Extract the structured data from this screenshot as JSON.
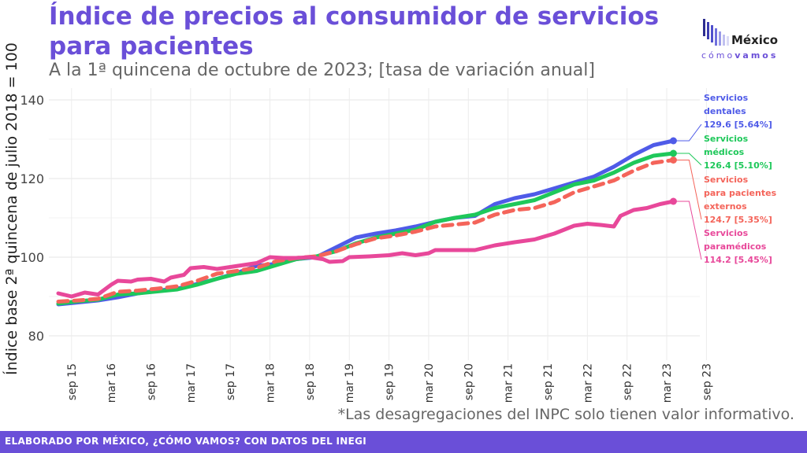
{
  "header": {
    "title": "Índice de precios al consumidor de servicios para pacientes",
    "subtitle": "A la 1ª quincena de octubre de 2023; [tasa de variación anual]"
  },
  "logo": {
    "name": "México",
    "tagline_a": "cómo",
    "tagline_b": "vamos"
  },
  "note": "*Las desagregaciones del INPC solo tienen valor informativo.",
  "footer": "ELABORADO POR MÉXICO, ¿CÓMO VAMOS? CON DATOS DEL INEGI",
  "chart_data": {
    "type": "line",
    "ylabel": "Índice base 2ª quincena de julio 2018 = 100",
    "ylim": [
      75,
      143
    ],
    "yticks": [
      80,
      100,
      120,
      140
    ],
    "xticks": [
      "sep 15",
      "mar 16",
      "sep 16",
      "mar 17",
      "sep 17",
      "mar 18",
      "sep 18",
      "mar 19",
      "sep 19",
      "mar 20",
      "sep 20",
      "mar 21",
      "sep 21",
      "mar 22",
      "sep 22",
      "mar 23",
      "sep 23"
    ],
    "x_start": "2015-07",
    "x_end": "2023-10",
    "grid": true,
    "series": [
      {
        "name": "Servicios dentales",
        "label_lines": [
          "Servicios",
          "dentales",
          "129.6 [5.64%]"
        ],
        "color": "#4f5be8",
        "dash": false,
        "points": [
          [
            0,
            88.0
          ],
          [
            3,
            88.5
          ],
          [
            6,
            89.0
          ],
          [
            9,
            89.8
          ],
          [
            12,
            90.8
          ],
          [
            15,
            91.5
          ],
          [
            18,
            92.0
          ],
          [
            21,
            93.2
          ],
          [
            24,
            94.5
          ],
          [
            27,
            96.0
          ],
          [
            30,
            97.8
          ],
          [
            33,
            98.3
          ],
          [
            36,
            99.5
          ],
          [
            39,
            100.0
          ],
          [
            42,
            102.5
          ],
          [
            45,
            105.0
          ],
          [
            48,
            106.0
          ],
          [
            51,
            106.8
          ],
          [
            54,
            107.8
          ],
          [
            57,
            109.0
          ],
          [
            60,
            110.0
          ],
          [
            63,
            110.5
          ],
          [
            66,
            113.5
          ],
          [
            69,
            115.0
          ],
          [
            72,
            116.0
          ],
          [
            75,
            117.5
          ],
          [
            78,
            119.0
          ],
          [
            81,
            120.5
          ],
          [
            84,
            123.0
          ],
          [
            87,
            126.0
          ],
          [
            90,
            128.5
          ],
          [
            93,
            129.6
          ]
        ],
        "value": 129.6
      },
      {
        "name": "Servicios médicos",
        "label_lines": [
          "Servicios",
          "médicos",
          "126.4 [5.10%]"
        ],
        "color": "#1ec85a",
        "dash": false,
        "points": [
          [
            0,
            88.2
          ],
          [
            3,
            88.8
          ],
          [
            6,
            89.2
          ],
          [
            9,
            90.5
          ],
          [
            12,
            90.8
          ],
          [
            15,
            91.3
          ],
          [
            18,
            91.8
          ],
          [
            21,
            93.0
          ],
          [
            24,
            94.5
          ],
          [
            27,
            95.8
          ],
          [
            30,
            96.5
          ],
          [
            33,
            98.0
          ],
          [
            36,
            99.5
          ],
          [
            39,
            100.2
          ],
          [
            42,
            101.5
          ],
          [
            45,
            103.5
          ],
          [
            48,
            105.0
          ],
          [
            51,
            106.0
          ],
          [
            54,
            107.0
          ],
          [
            57,
            109.0
          ],
          [
            60,
            110.0
          ],
          [
            63,
            110.8
          ],
          [
            66,
            112.5
          ],
          [
            69,
            113.5
          ],
          [
            72,
            114.5
          ],
          [
            75,
            116.5
          ],
          [
            78,
            118.5
          ],
          [
            81,
            119.5
          ],
          [
            84,
            121.5
          ],
          [
            87,
            124.0
          ],
          [
            90,
            125.8
          ],
          [
            93,
            126.4
          ]
        ],
        "value": 126.4
      },
      {
        "name": "Servicios para pacientes externos",
        "label_lines": [
          "Servicios",
          "para pacientes",
          "externos",
          "124.7 [5.35%]"
        ],
        "color": "#f4645a",
        "dash": true,
        "points": [
          [
            0,
            88.7
          ],
          [
            3,
            89.0
          ],
          [
            6,
            89.4
          ],
          [
            9,
            91.2
          ],
          [
            12,
            91.5
          ],
          [
            15,
            92.0
          ],
          [
            18,
            92.6
          ],
          [
            21,
            94.0
          ],
          [
            24,
            95.8
          ],
          [
            27,
            96.5
          ],
          [
            30,
            97.3
          ],
          [
            33,
            99.0
          ],
          [
            36,
            99.8
          ],
          [
            39,
            100.2
          ],
          [
            42,
            101.5
          ],
          [
            45,
            103.3
          ],
          [
            48,
            104.8
          ],
          [
            51,
            105.5
          ],
          [
            54,
            106.5
          ],
          [
            57,
            107.8
          ],
          [
            60,
            108.3
          ],
          [
            63,
            108.8
          ],
          [
            66,
            110.8
          ],
          [
            69,
            112.0
          ],
          [
            72,
            112.5
          ],
          [
            75,
            114.0
          ],
          [
            78,
            116.5
          ],
          [
            81,
            118.0
          ],
          [
            84,
            119.5
          ],
          [
            87,
            122.0
          ],
          [
            90,
            124.0
          ],
          [
            93,
            124.7
          ]
        ],
        "value": 124.7
      },
      {
        "name": "Servicios paramédicos",
        "label_lines": [
          "Servicios",
          "paramédicos",
          "114.2 [5.45%]"
        ],
        "color": "#e8489a",
        "dash": false,
        "points": [
          [
            0,
            90.8
          ],
          [
            2,
            90.0
          ],
          [
            4,
            91.0
          ],
          [
            6,
            90.5
          ],
          [
            8,
            93.0
          ],
          [
            9,
            94.0
          ],
          [
            11,
            93.8
          ],
          [
            12,
            94.3
          ],
          [
            14,
            94.5
          ],
          [
            16,
            93.8
          ],
          [
            17,
            94.8
          ],
          [
            19,
            95.5
          ],
          [
            20,
            97.2
          ],
          [
            22,
            97.5
          ],
          [
            24,
            97.0
          ],
          [
            26,
            97.5
          ],
          [
            28,
            98.0
          ],
          [
            30,
            98.5
          ],
          [
            32,
            100.0
          ],
          [
            34,
            99.8
          ],
          [
            36,
            99.8
          ],
          [
            38,
            100.0
          ],
          [
            40,
            99.5
          ],
          [
            41,
            98.8
          ],
          [
            43,
            99.0
          ],
          [
            44,
            100.0
          ],
          [
            47,
            100.2
          ],
          [
            50,
            100.5
          ],
          [
            52,
            101.0
          ],
          [
            54,
            100.5
          ],
          [
            56,
            101.0
          ],
          [
            57,
            101.8
          ],
          [
            60,
            101.8
          ],
          [
            63,
            101.8
          ],
          [
            66,
            103.0
          ],
          [
            69,
            103.8
          ],
          [
            72,
            104.5
          ],
          [
            75,
            106.0
          ],
          [
            78,
            108.0
          ],
          [
            80,
            108.5
          ],
          [
            82,
            108.2
          ],
          [
            84,
            107.8
          ],
          [
            85,
            110.5
          ],
          [
            87,
            112.0
          ],
          [
            89,
            112.5
          ],
          [
            91,
            113.5
          ],
          [
            93,
            114.2
          ]
        ],
        "value": 114.2
      }
    ]
  }
}
